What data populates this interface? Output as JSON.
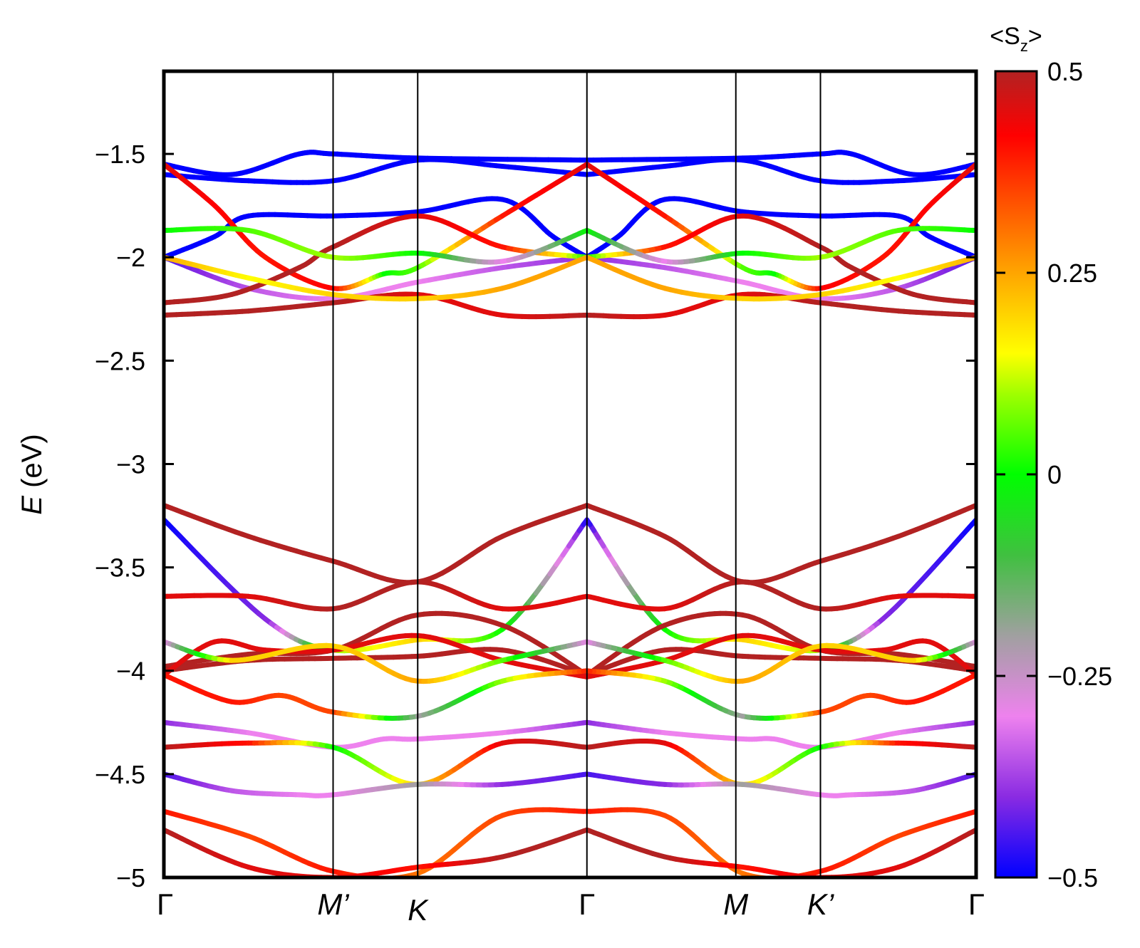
{
  "chart_data": {
    "type": "line",
    "title": "",
    "xlabel": "",
    "ylabel": "E (eV)",
    "ylabel_var": "E",
    "ylabel_unit": " (eV)",
    "ylim": [
      -5,
      -1.1
    ],
    "yticks": [
      -1.5,
      -2,
      -2.5,
      -3,
      -3.5,
      -4,
      -4.5,
      -5
    ],
    "ytick_labels": [
      "−1.5",
      "−2",
      "−2.5",
      "−3",
      "−3.5",
      "−4",
      "−4.5",
      "−5"
    ],
    "k_path": [
      {
        "label": "Γ",
        "italic": false,
        "position": 0
      },
      {
        "label": "M’",
        "italic": true,
        "position": 1
      },
      {
        "label": "K",
        "italic": true,
        "position": 1.5
      },
      {
        "label": "Γ",
        "italic": false,
        "position": 2.5
      },
      {
        "label": "M",
        "italic": true,
        "position": 3.38
      },
      {
        "label": "K’",
        "italic": true,
        "position": 3.88
      },
      {
        "label": "Γ",
        "italic": false,
        "position": 4.8
      }
    ],
    "xlim": [
      0,
      4.8
    ],
    "colorbar": {
      "title": "<S",
      "title_sub": "z",
      "title_end": ">",
      "range": [
        -0.5,
        0.5
      ],
      "ticks": [
        0.5,
        0.25,
        0,
        -0.25,
        -0.5
      ],
      "tick_labels": [
        "0.5",
        "0.25",
        "0",
        "−0.25",
        "−0.5"
      ],
      "colormap": [
        [
          -0.5,
          "#0000ff"
        ],
        [
          -0.4,
          "#8a2be2"
        ],
        [
          -0.3,
          "#ee82ee"
        ],
        [
          -0.2,
          "#a0a0a0"
        ],
        [
          -0.1,
          "#40c040"
        ],
        [
          0.0,
          "#00ff00"
        ],
        [
          0.1,
          "#a0ff00"
        ],
        [
          0.15,
          "#ffff00"
        ],
        [
          0.25,
          "#ffa500"
        ],
        [
          0.35,
          "#ff4500"
        ],
        [
          0.42,
          "#ff0000"
        ],
        [
          0.5,
          "#b22222"
        ]
      ]
    },
    "series": [
      {
        "x": [
          0,
          0.4,
          0.8,
          1.0,
          1.5,
          2.5
        ],
        "y": [
          -1.55,
          -1.6,
          -1.5,
          -1.5,
          -1.52,
          -1.53
        ],
        "sz": [
          -0.5,
          -0.5,
          -0.5,
          -0.5,
          -0.5,
          -0.5
        ]
      },
      {
        "x": [
          0,
          0.5,
          1.0,
          1.5,
          2.0,
          2.5
        ],
        "y": [
          -1.6,
          -1.63,
          -1.63,
          -1.53,
          -1.56,
          -1.6
        ],
        "sz": [
          -0.5,
          -0.5,
          -0.5,
          -0.5,
          -0.5,
          -0.5
        ]
      },
      {
        "x": [
          0,
          0.3,
          0.5,
          1.0,
          1.5,
          2.0,
          2.3,
          2.5
        ],
        "y": [
          -2.0,
          -1.9,
          -1.8,
          -1.8,
          -1.78,
          -1.72,
          -1.9,
          -2.0
        ],
        "sz": [
          -0.5,
          -0.5,
          -0.5,
          -0.5,
          -0.5,
          -0.5,
          -0.5,
          -0.5
        ]
      },
      {
        "x": [
          0,
          0.5,
          1.0,
          1.5,
          2.0,
          2.5
        ],
        "y": [
          -2.0,
          -2.15,
          -2.2,
          -2.12,
          -2.05,
          -2.0
        ],
        "sz": [
          -0.45,
          -0.35,
          -0.3,
          -0.3,
          -0.35,
          -0.4
        ]
      },
      {
        "x": [
          0,
          0.3,
          0.6,
          1.0,
          1.3,
          1.5,
          2.0,
          2.5
        ],
        "y": [
          -1.55,
          -1.75,
          -2.0,
          -2.15,
          -2.08,
          -2.05,
          -1.8,
          -1.55
        ],
        "sz": [
          0.45,
          0.42,
          0.4,
          0.42,
          0.0,
          0.05,
          0.4,
          0.45
        ]
      },
      {
        "x": [
          0,
          0.4,
          0.8,
          1.0,
          1.5,
          2.0,
          2.5
        ],
        "y": [
          -2.22,
          -2.18,
          -2.05,
          -1.95,
          -1.8,
          -1.95,
          -2.0
        ],
        "sz": [
          0.5,
          0.5,
          0.5,
          0.5,
          0.45,
          0.4,
          0.0
        ]
      },
      {
        "x": [
          0,
          0.5,
          1.0,
          1.5,
          2.0,
          2.5
        ],
        "y": [
          -2.28,
          -2.26,
          -2.22,
          -2.18,
          -2.28,
          -2.28
        ],
        "sz": [
          0.5,
          0.5,
          0.5,
          0.45,
          0.45,
          0.5
        ]
      },
      {
        "x": [
          0,
          0.5,
          1.0,
          1.5,
          2.0,
          2.5
        ],
        "y": [
          -1.87,
          -1.87,
          -2.0,
          -1.98,
          -2.02,
          -1.87
        ],
        "sz": [
          0.0,
          0.05,
          0.1,
          0.0,
          -0.3,
          0.0
        ]
      },
      {
        "x": [
          0,
          0.5,
          1.0,
          1.5,
          2.0,
          2.5
        ],
        "y": [
          -2.0,
          -2.1,
          -2.18,
          -2.2,
          -2.15,
          -2.0
        ],
        "sz": [
          0.25,
          0.15,
          0.2,
          0.2,
          0.25,
          0.25
        ]
      },
      {
        "x": [
          0,
          0.6,
          1.0,
          1.5,
          2.0,
          2.5
        ],
        "y": [
          -3.27,
          -3.75,
          -3.9,
          -3.85,
          -3.8,
          -3.27
        ],
        "sz": [
          -0.5,
          -0.4,
          0.1,
          0.2,
          0.0,
          -0.5
        ]
      },
      {
        "x": [
          0,
          0.5,
          1.0,
          1.5,
          2.0,
          2.5
        ],
        "y": [
          -3.2,
          -3.35,
          -3.47,
          -3.57,
          -3.35,
          -3.2
        ],
        "sz": [
          0.5,
          0.5,
          0.5,
          0.5,
          0.5,
          0.5
        ]
      },
      {
        "x": [
          0,
          0.5,
          1.0,
          1.5,
          2.0,
          2.5
        ],
        "y": [
          -3.64,
          -3.64,
          -3.7,
          -3.57,
          -3.7,
          -3.64
        ],
        "sz": [
          0.45,
          0.45,
          0.5,
          0.5,
          0.45,
          0.45
        ]
      },
      {
        "x": [
          0,
          0.5,
          1.0,
          1.5,
          2.0,
          2.5
        ],
        "y": [
          -3.98,
          -3.92,
          -3.9,
          -3.73,
          -3.78,
          -4.02
        ],
        "sz": [
          0.5,
          0.5,
          0.5,
          0.5,
          0.5,
          0.5
        ]
      },
      {
        "x": [
          0,
          0.5,
          1.0,
          1.5,
          2.0,
          2.5
        ],
        "y": [
          -4.0,
          -3.95,
          -3.94,
          -3.93,
          -3.9,
          -4.02
        ],
        "sz": [
          0.5,
          0.5,
          0.5,
          0.5,
          0.5,
          0.5
        ]
      },
      {
        "x": [
          0,
          0.3,
          0.6,
          1.0,
          1.5,
          2.0,
          2.5
        ],
        "y": [
          -4.02,
          -3.86,
          -3.9,
          -3.9,
          -3.83,
          -3.95,
          -4.03
        ],
        "sz": [
          0.45,
          0.45,
          0.45,
          0.45,
          0.45,
          0.45,
          0.45
        ]
      },
      {
        "x": [
          0,
          0.4,
          1.0,
          1.5,
          2.0,
          2.5
        ],
        "y": [
          -3.86,
          -3.95,
          -3.88,
          -4.05,
          -3.95,
          -3.86
        ],
        "sz": [
          -0.3,
          0.2,
          0.2,
          0.25,
          0.05,
          -0.3
        ]
      },
      {
        "x": [
          0,
          0.4,
          0.7,
          1.0,
          1.5,
          2.0,
          2.5
        ],
        "y": [
          -4.02,
          -4.15,
          -4.12,
          -4.2,
          -4.22,
          -4.05,
          -4.0
        ],
        "sz": [
          0.4,
          0.4,
          0.35,
          0.35,
          -0.2,
          0.1,
          0.4
        ]
      },
      {
        "x": [
          0,
          0.5,
          1.0,
          1.3,
          1.5,
          2.0,
          2.5
        ],
        "y": [
          -4.25,
          -4.3,
          -4.37,
          -4.33,
          -4.33,
          -4.3,
          -4.25
        ],
        "sz": [
          -0.4,
          -0.3,
          -0.3,
          -0.3,
          -0.3,
          -0.3,
          -0.4
        ]
      },
      {
        "x": [
          0,
          0.5,
          1.0,
          1.5,
          2.0,
          2.5
        ],
        "y": [
          -4.37,
          -4.35,
          -4.37,
          -4.55,
          -4.35,
          -4.37
        ],
        "sz": [
          0.5,
          0.4,
          0.0,
          0.2,
          0.45,
          0.5
        ]
      },
      {
        "x": [
          0,
          0.4,
          0.8,
          1.0,
          1.5,
          2.0,
          2.5
        ],
        "y": [
          -4.5,
          -4.58,
          -4.6,
          -4.6,
          -4.55,
          -4.55,
          -4.5
        ],
        "sz": [
          -0.45,
          -0.35,
          -0.3,
          -0.3,
          -0.2,
          -0.4,
          -0.45
        ]
      },
      {
        "x": [
          0,
          0.5,
          1.0,
          1.5,
          2.0,
          2.5
        ],
        "y": [
          -4.68,
          -4.8,
          -4.97,
          -4.98,
          -4.7,
          -4.68
        ],
        "sz": [
          0.4,
          0.35,
          0.4,
          0.3,
          0.35,
          0.4
        ]
      },
      {
        "x": [
          0,
          0.5,
          1.0,
          1.5,
          2.0,
          2.5
        ],
        "y": [
          -4.77,
          -4.95,
          -5.0,
          -4.95,
          -4.9,
          -4.77
        ],
        "sz": [
          0.5,
          0.45,
          0.45,
          0.4,
          0.5,
          0.5
        ]
      }
    ]
  }
}
